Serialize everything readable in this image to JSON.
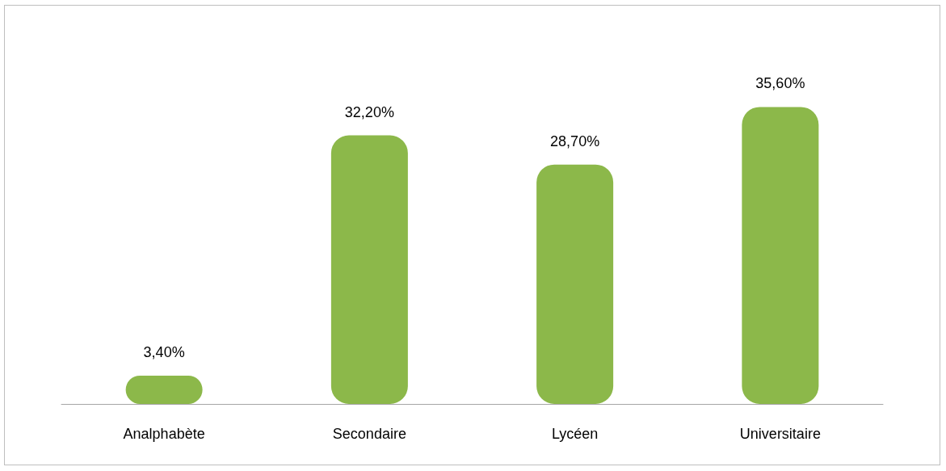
{
  "chart_data": {
    "type": "bar",
    "categories": [
      "Analphabète",
      "Secondaire",
      "Lycéen",
      "Universitaire"
    ],
    "values": [
      3.4,
      32.2,
      28.7,
      35.6
    ],
    "value_labels": [
      "3,40%",
      "32,20%",
      "28,70%",
      "35,60%"
    ],
    "color": "#8cb84a"
  }
}
